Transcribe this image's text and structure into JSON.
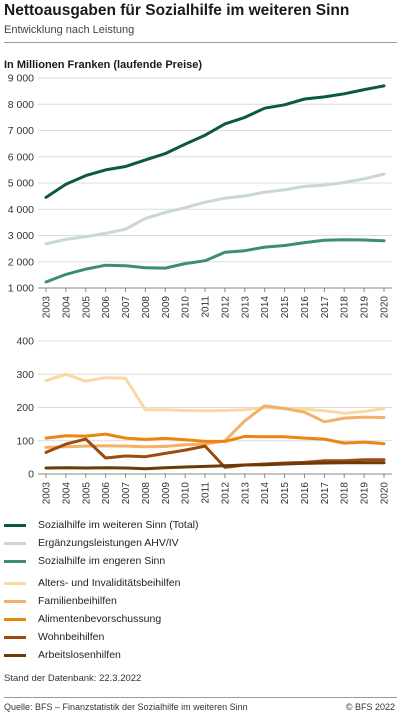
{
  "title": "Nettoausgaben für Sozialhilfe im weiteren Sinn",
  "subtitle": "Entwicklung nach Leistung",
  "unit_label": "In Millionen Franken (laufende Preise)",
  "db_date": "Stand der Datenbank: 22.3.2022",
  "source": "Quelle: BFS – Finanzstatistik der Sozialhilfe im weiteren Sinn",
  "copyright": "© BFS 2022",
  "chart_data": [
    {
      "type": "line",
      "x": [
        "2003",
        "2004",
        "2005",
        "2006",
        "2007",
        "2008",
        "2009",
        "2010",
        "2011",
        "2012",
        "2013",
        "2014",
        "2015",
        "2016",
        "2017",
        "2018",
        "2019",
        "2020"
      ],
      "ylim": [
        1000,
        9000
      ],
      "yticks": [
        "1 000",
        "2 000",
        "3 000",
        "4 000",
        "5 000",
        "6 000",
        "7 000",
        "8 000",
        "9 000"
      ],
      "grid": true,
      "series": [
        {
          "name": "Sozialhilfe im weiteren Sinn (Total)",
          "color": "#0b5a3a",
          "values": [
            4450,
            4950,
            5280,
            5500,
            5630,
            5880,
            6120,
            6480,
            6820,
            7250,
            7500,
            7850,
            7980,
            8200,
            8280,
            8400,
            8560,
            8700
          ]
        },
        {
          "name": "Ergänzungsleistungen AHV/IV",
          "color": "#c9d8d0",
          "values": [
            2680,
            2850,
            2960,
            3080,
            3240,
            3650,
            3880,
            4060,
            4270,
            4420,
            4510,
            4650,
            4740,
            4870,
            4920,
            5020,
            5160,
            5340
          ]
        },
        {
          "name": "Sozialhilfe im engeren Sinn",
          "color": "#3d8f6a",
          "values": [
            1230,
            1520,
            1720,
            1870,
            1850,
            1770,
            1760,
            1930,
            2040,
            2360,
            2420,
            2560,
            2620,
            2730,
            2820,
            2840,
            2830,
            2800
          ]
        }
      ]
    },
    {
      "type": "line",
      "x": [
        "2003",
        "2004",
        "2005",
        "2006",
        "2007",
        "2008",
        "2009",
        "2010",
        "2011",
        "2012",
        "2013",
        "2014",
        "2015",
        "2016",
        "2017",
        "2018",
        "2019",
        "2020"
      ],
      "ylim": [
        0,
        400
      ],
      "yticks": [
        "0",
        "100",
        "200",
        "300",
        "400"
      ],
      "grid": true,
      "series": [
        {
          "name": "Alters- und Invaliditätsbeihilfen",
          "color": "#f8d9a6",
          "values": [
            281,
            300,
            279,
            290,
            288,
            193,
            193,
            191,
            190,
            191,
            193,
            200,
            196,
            195,
            190,
            183,
            188,
            197
          ]
        },
        {
          "name": "Familienbeihilfen",
          "color": "#f2b06a",
          "values": [
            80,
            82,
            84,
            85,
            84,
            82,
            83,
            88,
            90,
            100,
            160,
            205,
            197,
            186,
            157,
            168,
            171,
            170
          ]
        },
        {
          "name": "Alimentenbevorschussung",
          "color": "#e8870f",
          "values": [
            108,
            115,
            114,
            120,
            108,
            104,
            107,
            103,
            98,
            98,
            113,
            112,
            112,
            108,
            105,
            93,
            96,
            91
          ]
        },
        {
          "name": "Wohnbeihilfen",
          "color": "#9c4a0e",
          "values": [
            65,
            90,
            105,
            48,
            54,
            52,
            62,
            72,
            84,
            20,
            27,
            30,
            33,
            35,
            40,
            40,
            43,
            43
          ]
        },
        {
          "name": "Arbeitslosenhilfen",
          "color": "#6b3a08",
          "values": [
            18,
            19,
            18,
            19,
            18,
            16,
            19,
            21,
            23,
            25,
            27,
            28,
            30,
            32,
            33,
            34,
            34,
            34
          ]
        }
      ]
    }
  ]
}
